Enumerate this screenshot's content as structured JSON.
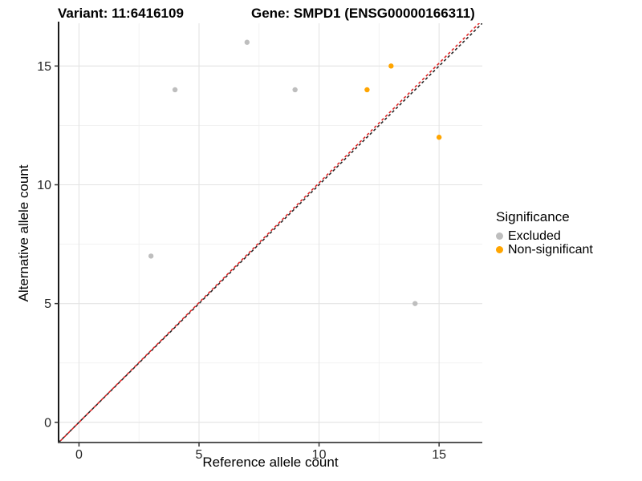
{
  "figure": {
    "title_variant": "Variant: 11:6416109",
    "title_gene": "Gene: SMPD1 (ENSG00000166311)"
  },
  "chart_data": {
    "type": "scatter",
    "title": "Variant: 11:6416109   Gene: SMPD1 (ENSG00000166311)",
    "xlabel": "Reference allele count",
    "ylabel": "Alternative allele count",
    "xlim": [
      -0.85,
      16.8
    ],
    "ylim": [
      -0.85,
      16.8
    ],
    "x_ticks": [
      0,
      5,
      10,
      15
    ],
    "y_ticks": [
      0,
      5,
      10,
      15
    ],
    "minor_gridlines": [
      2.5,
      7.5,
      12.5
    ],
    "grid": "major and minor, light gray on white",
    "legend_position": "right",
    "series": [
      {
        "name": "Excluded",
        "color": "#BEBEBE",
        "points": [
          [
            3,
            7
          ],
          [
            4,
            14
          ],
          [
            7,
            16
          ],
          [
            9,
            14
          ],
          [
            14,
            5
          ]
        ]
      },
      {
        "name": "Non-significant",
        "color": "#FFA500",
        "points": [
          [
            12,
            14
          ],
          [
            13,
            15
          ],
          [
            15,
            12
          ]
        ]
      }
    ],
    "reference_lines": [
      {
        "name": "identity",
        "slope": 1,
        "intercept": 0,
        "color": "#262626",
        "style": "dashed"
      },
      {
        "name": "expected-ratio",
        "slope": 1.008,
        "intercept": 0,
        "color": "#E02424",
        "style": "dashed"
      }
    ]
  },
  "legend": {
    "title": "Significance",
    "items": [
      {
        "label": "Excluded",
        "color": "#BEBEBE"
      },
      {
        "label": "Non-significant",
        "color": "#FFA500"
      }
    ]
  },
  "colors": {
    "background": "#FFFFFF",
    "grid_major": "#E3E3E3",
    "grid_minor": "#EFEFEF",
    "axis_line_left": "#1A1A1A",
    "axis_line_bottom": "#555555",
    "tick_mark": "#333333",
    "tick_label": "#262626"
  }
}
